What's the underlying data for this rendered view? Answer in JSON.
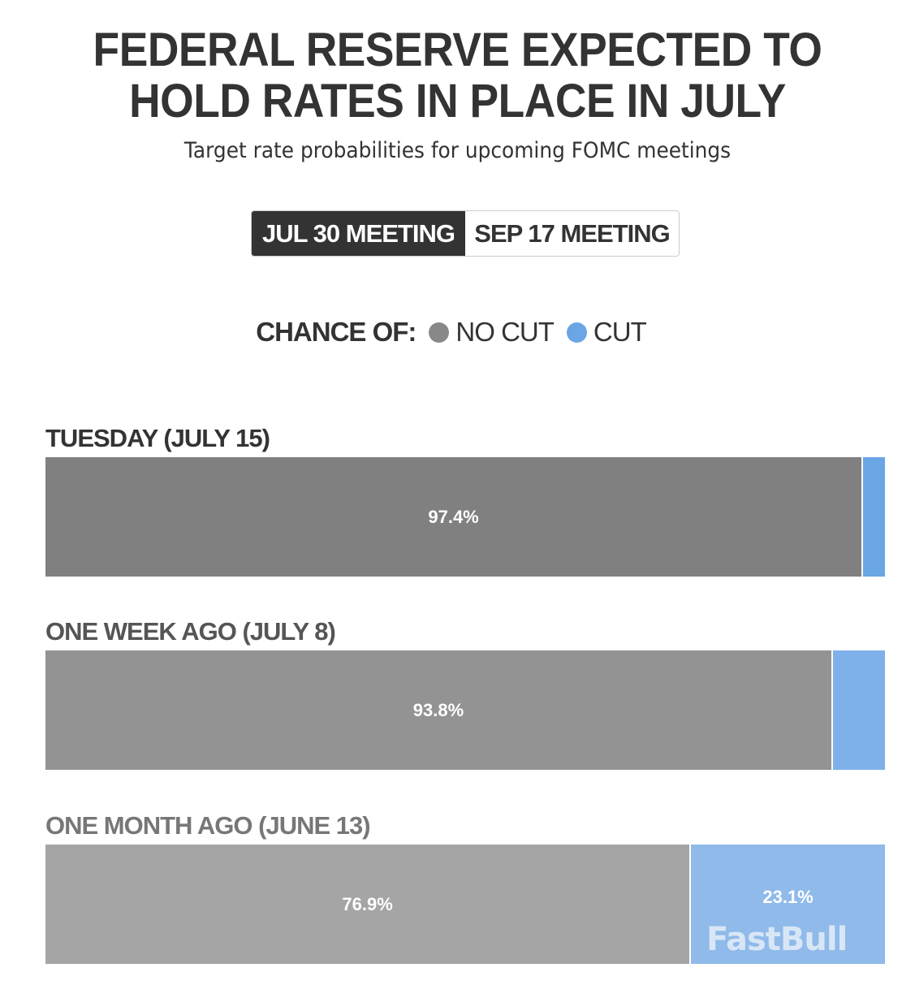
{
  "title_line1": "FEDERAL RESERVE EXPECTED TO",
  "title_line2": "HOLD RATES IN PLACE IN JULY",
  "subtitle": "Target rate probabilities for upcoming FOMC meetings",
  "tabs": [
    {
      "label": "JUL 30 MEETING",
      "active": true
    },
    {
      "label": "SEP 17 MEETING",
      "active": false
    }
  ],
  "legend": {
    "title": "CHANCE OF:",
    "items": [
      {
        "label": "NO CUT",
        "color": "#888888"
      },
      {
        "label": "CUT",
        "color": "#6aa5e4"
      }
    ]
  },
  "watermark": "FastBull",
  "chart_data": {
    "type": "bar",
    "orientation": "horizontal",
    "stacked": true,
    "xlim": [
      0,
      100
    ],
    "categories": [
      "TUESDAY (JULY 15)",
      "ONE WEEK AGO (JULY 8)",
      "ONE MONTH AGO (JUNE 13)"
    ],
    "series": [
      {
        "name": "NO CUT",
        "values": [
          97.4,
          93.8,
          76.9
        ],
        "labels": [
          "97.4%",
          "93.8%",
          "76.9%"
        ],
        "colors": [
          "#808080",
          "#939393",
          "#a5a5a5"
        ]
      },
      {
        "name": "CUT",
        "values": [
          2.6,
          6.2,
          23.1
        ],
        "labels": [
          "",
          "",
          "23.1%"
        ],
        "colors": [
          "#6aa5e4",
          "#7eb0ea",
          "#8fbaea"
        ]
      }
    ],
    "category_label_colors": [
      "#333333",
      "#555555",
      "#777777"
    ]
  }
}
